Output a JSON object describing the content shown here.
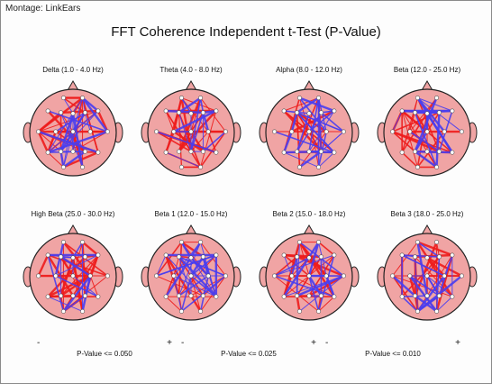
{
  "montage": "Montage:  LinkEars",
  "title": "FFT Coherence Independent t-Test  (P-Value)",
  "colors": {
    "head_fill": "#f0a4a4",
    "head_outline": "#222222",
    "increase": "#ee1c1c",
    "decrease": "#4a3ef0",
    "electrode": "#ffffff"
  },
  "panels": [
    {
      "label": "Delta (1.0 - 4.0 Hz)",
      "red": 0.55,
      "blue": 0.45
    },
    {
      "label": "Theta (4.0 - 8.0 Hz)",
      "red": 0.65,
      "blue": 0.35
    },
    {
      "label": "Alpha (8.0 - 12.0 Hz)",
      "red": 0.35,
      "blue": 0.65
    },
    {
      "label": "Beta (12.0 - 25.0 Hz)",
      "red": 0.6,
      "blue": 0.4
    },
    {
      "label": "High Beta (25.0 - 30.0 Hz)",
      "red": 0.7,
      "blue": 0.3
    },
    {
      "label": "Beta 1 (12.0 - 15.0 Hz)",
      "red": 0.5,
      "blue": 0.5
    },
    {
      "label": "Beta 2 (15.0 - 18.0 Hz)",
      "red": 0.62,
      "blue": 0.38
    },
    {
      "label": "Beta 3 (18.0 - 25.0 Hz)",
      "red": 0.55,
      "blue": 0.45
    }
  ],
  "legend": [
    {
      "minus": "-",
      "plus": "+",
      "caption": "P-Value <= 0.050",
      "weight": 1
    },
    {
      "minus": "-",
      "plus": "+",
      "caption": "P-Value <= 0.025",
      "weight": 2
    },
    {
      "minus": "-",
      "plus": "+",
      "caption": "P-Value <= 0.010",
      "weight": 3.5
    }
  ]
}
